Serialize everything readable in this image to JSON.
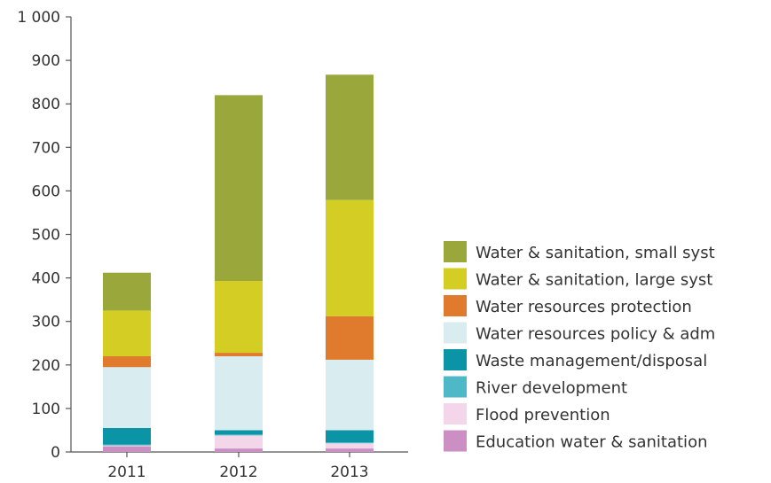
{
  "chart_data": {
    "type": "bar",
    "stacked": true,
    "categories": [
      "2011",
      "2012",
      "2013"
    ],
    "ylim": [
      0,
      1000
    ],
    "yticks": [
      "0",
      "100",
      "200",
      "300",
      "400",
      "500",
      "600",
      "700",
      "800",
      "900",
      "1 000"
    ],
    "grid": false,
    "legend_position": "right",
    "series": [
      {
        "name": "Education water & sanitation",
        "color": "#cc8fc4",
        "values": [
          13,
          8,
          8
        ]
      },
      {
        "name": "Flood prevention",
        "color": "#f3d6ea",
        "values": [
          2,
          30,
          12
        ]
      },
      {
        "name": "River development",
        "color": "#4fb8c6",
        "values": [
          2,
          2,
          2
        ]
      },
      {
        "name": "Waste management/disposal",
        "color": "#0b93a6",
        "values": [
          38,
          10,
          28
        ]
      },
      {
        "name": "Water resources policy & adm",
        "color": "#d9edf1",
        "values": [
          140,
          170,
          162
        ]
      },
      {
        "name": "Water resources protection",
        "color": "#e07b2e",
        "values": [
          25,
          8,
          100
        ]
      },
      {
        "name": "Water & sanitation, large syst",
        "color": "#d4cd23",
        "values": [
          105,
          165,
          267
        ]
      },
      {
        "name": "Water & sanitation, small syst",
        "color": "#9aa73a",
        "values": [
          87,
          427,
          288
        ]
      }
    ]
  }
}
